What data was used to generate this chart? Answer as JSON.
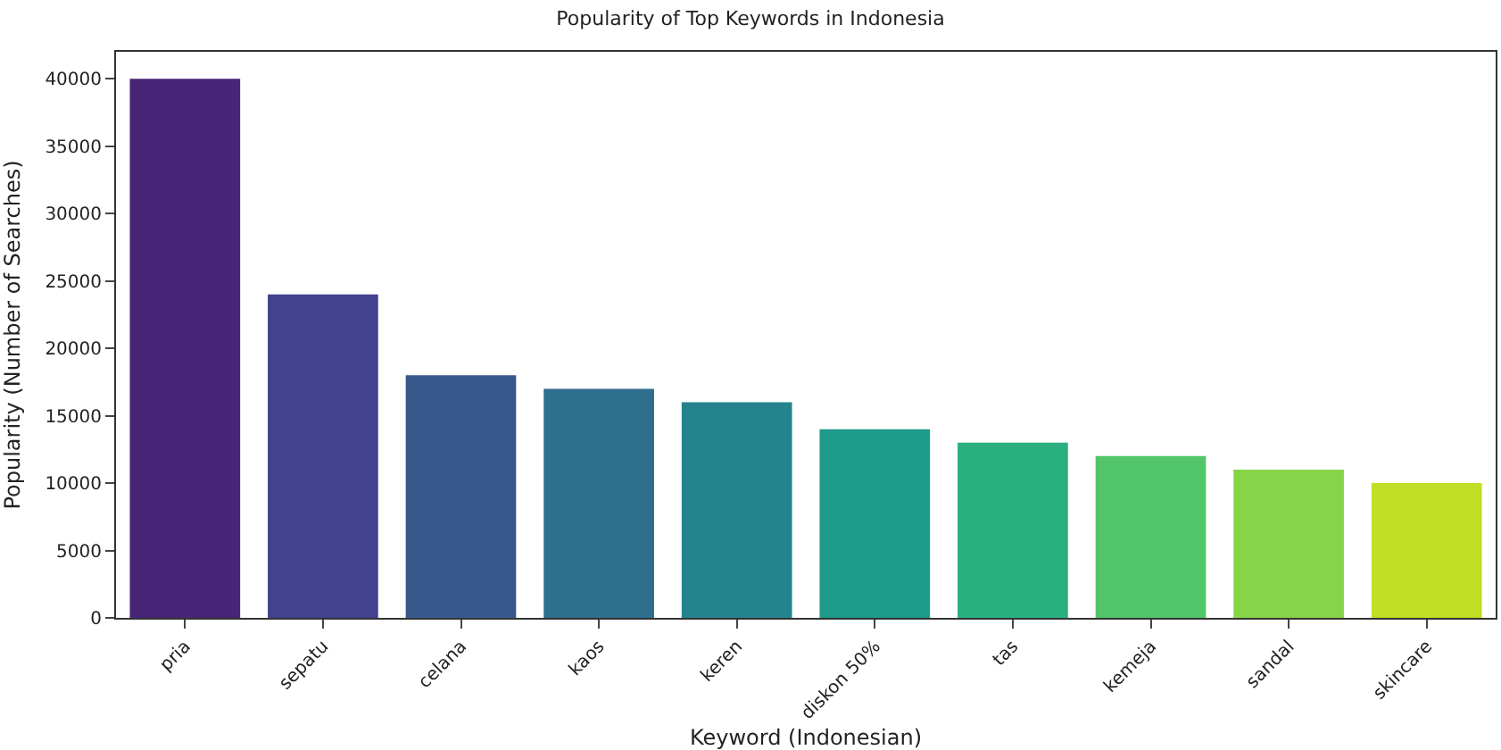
{
  "chart_data": {
    "type": "bar",
    "title": "Popularity of Top Keywords in Indonesia",
    "xlabel": "Keyword (Indonesian)",
    "ylabel": "Popularity (Number of Searches)",
    "categories": [
      "pria",
      "sepatu",
      "celana",
      "kaos",
      "keren",
      "diskon 50%",
      "tas",
      "kemeja",
      "sandal",
      "skincare"
    ],
    "values": [
      40000,
      24000,
      18000,
      17000,
      16000,
      14000,
      13000,
      12000,
      11000,
      10000
    ],
    "colors": [
      "#482576",
      "#43428e",
      "#38588c",
      "#2e6f8e",
      "#25838e",
      "#1e9a8a",
      "#2ab07f",
      "#52c569",
      "#86d549",
      "#c0df25"
    ],
    "ylim": [
      0,
      42000
    ],
    "yticks": [
      0,
      5000,
      10000,
      15000,
      20000,
      25000,
      30000,
      35000,
      40000
    ]
  }
}
